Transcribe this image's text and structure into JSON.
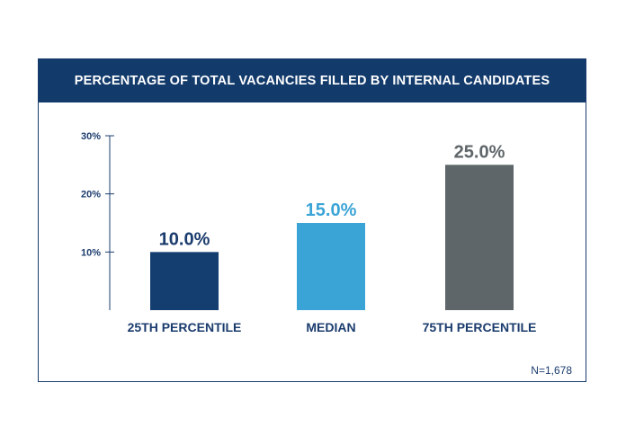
{
  "chart_data": {
    "type": "bar",
    "title": "PERCENTAGE OF TOTAL VACANCIES FILLED BY INTERNAL CANDIDATES",
    "categories": [
      "25TH PERCENTILE",
      "MEDIAN",
      "75TH PERCENTILE"
    ],
    "values": [
      10.0,
      15.0,
      25.0
    ],
    "value_labels": [
      "10.0%",
      "15.0%",
      "25.0%"
    ],
    "bar_colors": [
      "#143e6f",
      "#3ba4d6",
      "#5f6669"
    ],
    "label_colors": [
      "#1b3c6e",
      "#3ba4d6",
      "#5f6669"
    ],
    "yticks": [
      10,
      20,
      30
    ],
    "ytick_labels": [
      "10%",
      "20%",
      "30%"
    ],
    "ylim": [
      0,
      30
    ],
    "grid": false,
    "xlabel": "",
    "ylabel": "",
    "note": "N=1,678"
  },
  "colors": {
    "banner_bg": "#123a6b",
    "axis": "#1b3c6e",
    "text_dark": "#1b3c6e"
  }
}
